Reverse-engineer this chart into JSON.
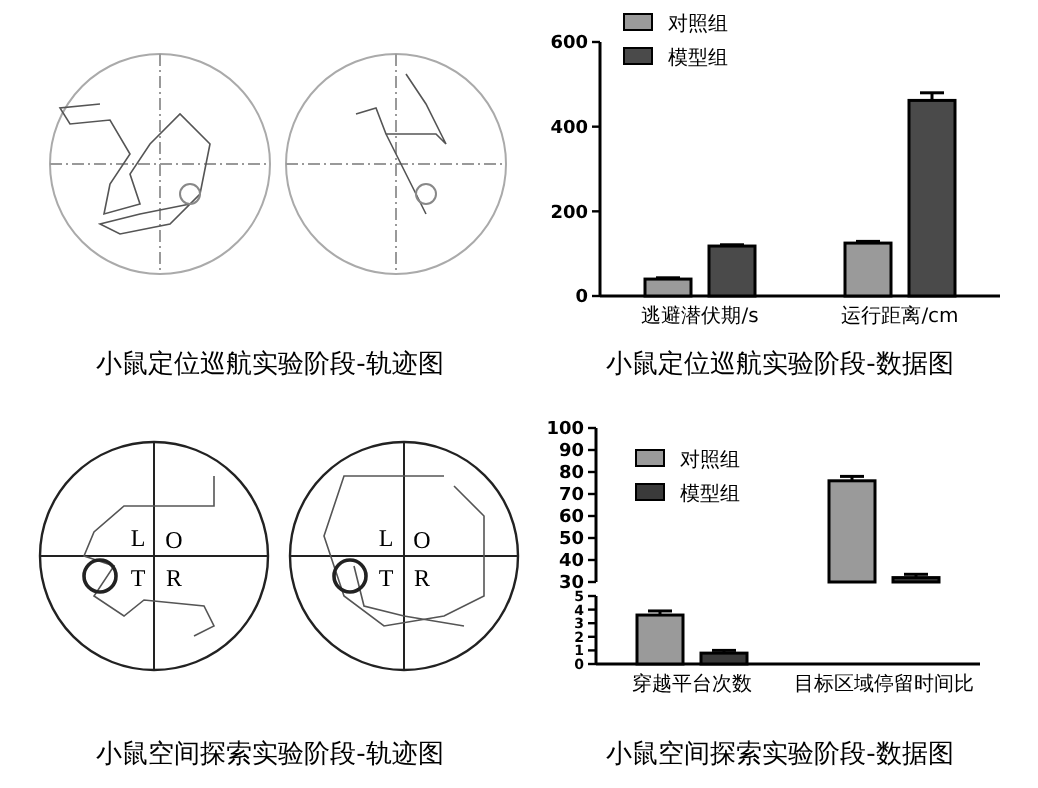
{
  "chart_data": [
    {
      "type": "other",
      "title": "小鼠定位巡航实验阶段-轨迹图"
    },
    {
      "type": "bar",
      "title": "小鼠定位巡航实验阶段-数据图",
      "categories": [
        "逃避潜伏期/s",
        "运行距离/cm"
      ],
      "series": [
        {
          "name": "对照组",
          "color": "#9a9a9a",
          "values": [
            40,
            125
          ],
          "errors": [
            3,
            4
          ]
        },
        {
          "name": "模型组",
          "color": "#4a4a4a",
          "values": [
            118,
            462
          ],
          "errors": [
            3,
            18
          ]
        }
      ],
      "ylim": [
        0,
        600
      ],
      "yticks": [
        0,
        200,
        400,
        600
      ],
      "legend": "top left"
    },
    {
      "type": "other",
      "title": "小鼠空间探索实验阶段-轨迹图",
      "annotations": [
        "L",
        "O",
        "T",
        "R",
        "L",
        "O",
        "T",
        "R"
      ]
    },
    {
      "type": "bar",
      "categories": [
        null,
        null
      ],
      "tick_labels": "y",
      "series": [
        {
          "name": "对照组",
          "color": "#9a9a9a",
          "values": [
            null,
            76
          ],
          "errors": [
            null,
            2
          ]
        },
        {
          "name": "模型组",
          "color": "#3a3a3a",
          "values": [
            null,
            32
          ],
          "errors": [
            null,
            1.5
          ]
        }
      ],
      "ylim": [
        30,
        100
      ],
      "yticks": [
        30,
        40,
        50,
        60,
        70,
        80,
        90,
        100
      ],
      "legend": "top left"
    },
    {
      "type": "bar",
      "title": "小鼠空间探索实验阶段-数据图",
      "categories": [
        "穿越平台次数",
        "目标区域停留时间比"
      ],
      "series": [
        {
          "color": "#9a9a9a",
          "values": [
            3.6,
            null
          ],
          "errors": [
            0.3,
            null
          ]
        },
        {
          "color": "#3a3a3a",
          "values": [
            0.8,
            null
          ],
          "errors": [
            0.2,
            null
          ]
        }
      ],
      "ylim": [
        0,
        5
      ],
      "yticks": [
        0,
        1,
        2,
        3,
        4,
        5
      ]
    }
  ]
}
